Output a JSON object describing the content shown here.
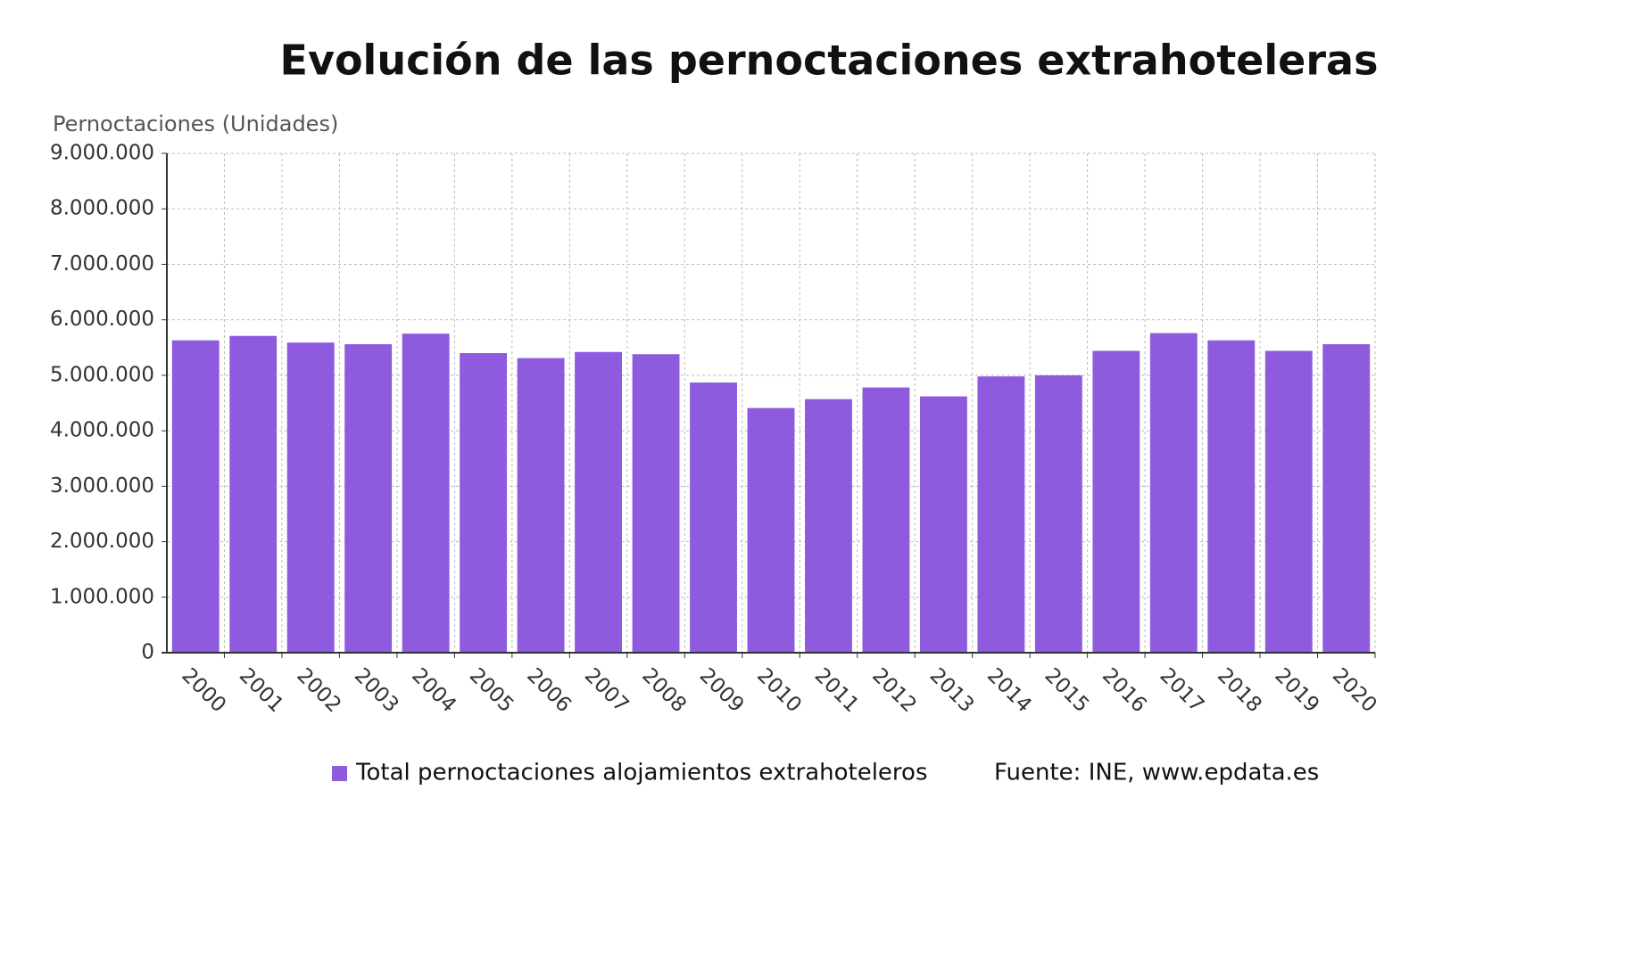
{
  "chart_data": {
    "type": "bar",
    "title": "Evolución de las pernoctaciones extrahoteleras",
    "y_axis_label": "Pernoctaciones (Unidades)",
    "source": "Fuente: INE, www.epdata.es",
    "categories": [
      "2000",
      "2001",
      "2002",
      "2003",
      "2004",
      "2005",
      "2006",
      "2007",
      "2008",
      "2009",
      "2010",
      "2011",
      "2012",
      "2013",
      "2014",
      "2015",
      "2016",
      "2017",
      "2018",
      "2019",
      "2020"
    ],
    "series": [
      {
        "name": "Total pernoctaciones alojamientos extrahoteleros",
        "color": "#8e5ade",
        "values": [
          5630000,
          5710000,
          5590000,
          5560000,
          5750000,
          5400000,
          5310000,
          5420000,
          5380000,
          4870000,
          4410000,
          4570000,
          4780000,
          4620000,
          4980000,
          5000000,
          5440000,
          5760000,
          5630000,
          5440000,
          5560000
        ]
      }
    ],
    "ylim": [
      0,
      9000000
    ],
    "yticks": [
      0,
      {
        "value": 1000000,
        "label": "1.000.000"
      },
      {
        "value": 2000000,
        "label": "2.000.000"
      },
      {
        "value": 3000000,
        "label": "3.000.000"
      },
      {
        "value": 4000000,
        "label": "4.000.000"
      },
      {
        "value": 5000000,
        "label": "5.000.000"
      },
      {
        "value": 6000000,
        "label": "6.000.000"
      },
      {
        "value": 7000000,
        "label": "7.000.000"
      },
      {
        "value": 8000000,
        "label": "8.000.000"
      },
      {
        "value": 9000000,
        "label": "9.000.000"
      }
    ],
    "grid": true
  }
}
